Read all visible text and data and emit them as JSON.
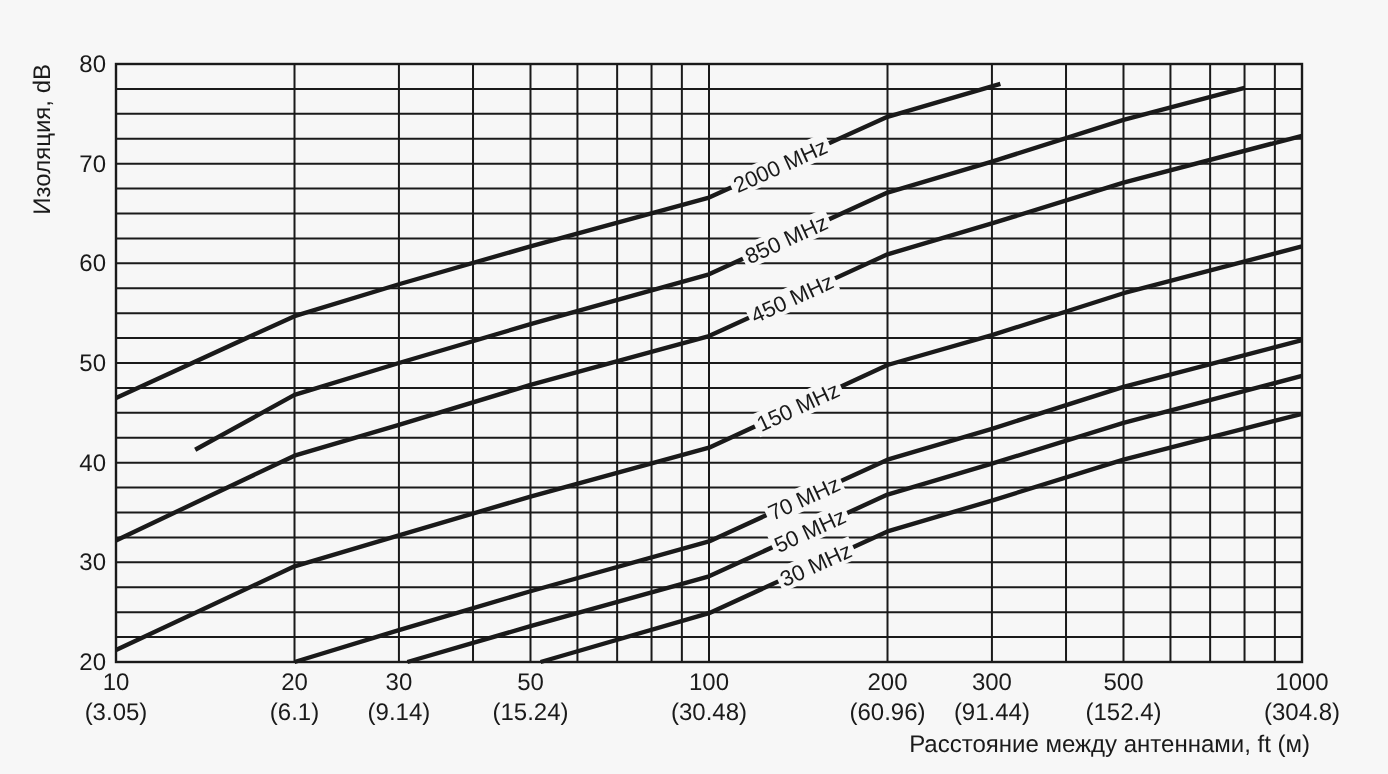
{
  "chart_data": {
    "type": "line",
    "xlabel": "Расстояние между антеннами, ft (м)",
    "ylabel": "Изоляция, dB",
    "log": "x",
    "grid": true,
    "marker": "none",
    "line_style": "solid",
    "xlim": [
      10,
      1000
    ],
    "ylim": [
      20,
      80
    ],
    "xticks": [
      10,
      20,
      30,
      {
        "value": 40,
        "label": null
      },
      50,
      {
        "value": 60,
        "label": null
      },
      {
        "value": 70,
        "label": null
      },
      {
        "value": 80,
        "label": null
      },
      {
        "value": 90,
        "label": null
      },
      100,
      200,
      300,
      {
        "value": 400,
        "label": null
      },
      500,
      {
        "value": 600,
        "label": null
      },
      {
        "value": 700,
        "label": null
      },
      {
        "value": 800,
        "label": null
      },
      {
        "value": 900,
        "label": null
      },
      1000
    ],
    "annotations": [
      "(3.05)",
      "(6.1)",
      "(9.14)",
      "(15.24)",
      "(30.48)",
      "(60.96)",
      "(91.44)",
      "(152.4)",
      "(304.8)"
    ],
    "yticks": [
      20,
      {
        "value": 22.5,
        "label": null
      },
      {
        "value": 25,
        "label": null
      },
      {
        "value": 27.5,
        "label": null
      },
      30,
      {
        "value": 32.5,
        "label": null
      },
      {
        "value": 35,
        "label": null
      },
      {
        "value": 37.5,
        "label": null
      },
      40,
      {
        "value": 42.5,
        "label": null
      },
      {
        "value": 45,
        "label": null
      },
      {
        "value": 47.5,
        "label": null
      },
      50,
      {
        "value": 52.5,
        "label": null
      },
      {
        "value": 55,
        "label": null
      },
      {
        "value": 57.5,
        "label": null
      },
      60,
      {
        "value": 62.5,
        "label": null
      },
      {
        "value": 65,
        "label": null
      },
      {
        "value": 67.5,
        "label": null
      },
      70,
      {
        "value": 72.5,
        "label": null
      },
      {
        "value": 75,
        "label": null
      },
      {
        "value": 77.5,
        "label": null
      },
      80
    ],
    "series": [
      {
        "name": "2000 MHz",
        "color": "#1a1a1a",
        "x": [
          10,
          20,
          30,
          50,
          100,
          200,
          310
        ],
        "values": [
          46.5,
          54.7,
          57.9,
          61.7,
          66.6,
          74.7,
          78
        ]
      },
      {
        "name": "850 MHz",
        "color": "#1a1a1a",
        "x": [
          13.6,
          20,
          30,
          50,
          100,
          200,
          300,
          500,
          800
        ],
        "values": [
          41.3,
          46.8,
          50,
          53.9,
          58.9,
          67.1,
          70.2,
          74.4,
          77.6
        ]
      },
      {
        "name": "450 MHz",
        "color": "#1a1a1a",
        "x": [
          10,
          20,
          30,
          50,
          100,
          200,
          300,
          500,
          1000
        ],
        "values": [
          32.2,
          40.7,
          43.8,
          47.8,
          52.7,
          60.9,
          64,
          68.1,
          72.8
        ]
      },
      {
        "name": "150 MHz",
        "color": "#1a1a1a",
        "x": [
          10,
          20,
          30,
          50,
          100,
          200,
          300,
          500,
          1000
        ],
        "values": [
          21.2,
          29.6,
          32.7,
          36.6,
          41.5,
          49.8,
          52.8,
          57,
          61.7
        ]
      },
      {
        "name": "70 MHz",
        "color": "#1a1a1a",
        "x": [
          20,
          30,
          50,
          100,
          200,
          300,
          500,
          1000
        ],
        "values": [
          20,
          23.2,
          27.1,
          32.1,
          40.3,
          43.4,
          47.6,
          52.3
        ]
      },
      {
        "name": "50 MHz",
        "color": "#1a1a1a",
        "x": [
          31,
          50,
          100,
          200,
          300,
          500,
          1000
        ],
        "values": [
          20,
          23.6,
          28.6,
          36.8,
          39.9,
          44,
          48.7
        ]
      },
      {
        "name": "30 MHz",
        "color": "#1a1a1a",
        "x": [
          52,
          100,
          200,
          300,
          500,
          1000
        ],
        "values": [
          20,
          24.9,
          33.1,
          36.2,
          40.3,
          44.9
        ]
      }
    ]
  }
}
